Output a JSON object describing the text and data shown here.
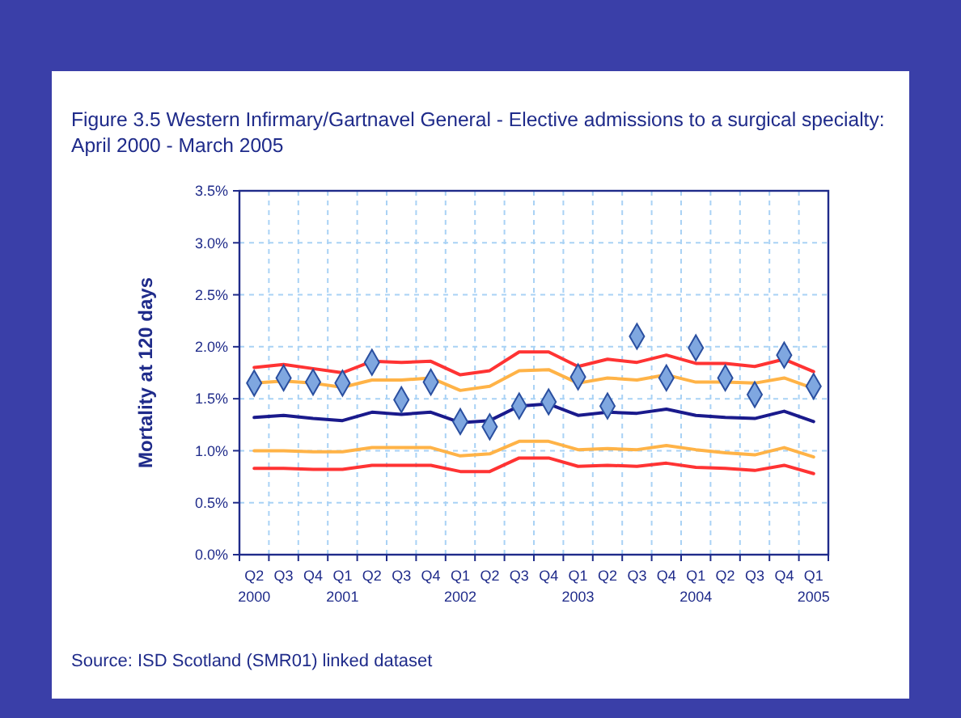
{
  "chart_data": {
    "type": "line",
    "title": "Figure 3.5 Western Infirmary/Gartnavel General - Elective admissions to a surgical specialty:\nApril 2000 - March 2005",
    "ylabel": "Mortality at 120 days",
    "categories": [
      "Q2\n2000",
      "Q3",
      "Q4",
      "Q1\n2001",
      "Q2",
      "Q3",
      "Q4",
      "Q1\n2002",
      "Q2",
      "Q3",
      "Q4",
      "Q1\n2003",
      "Q2",
      "Q3",
      "Q4",
      "Q1\n2004",
      "Q2",
      "Q3",
      "Q4",
      "Q1\n2005"
    ],
    "series": [
      {
        "type": "line",
        "color": "#ff3333",
        "marker": "none",
        "values": [
          1.8,
          1.83,
          1.79,
          1.75,
          1.86,
          1.85,
          1.86,
          1.73,
          1.77,
          1.95,
          1.95,
          1.81,
          1.88,
          1.85,
          1.92,
          1.84,
          1.84,
          1.81,
          1.88,
          1.76
        ]
      },
      {
        "type": "line",
        "color": "#ffb347",
        "marker": "none",
        "values": [
          1.65,
          1.67,
          1.65,
          1.61,
          1.68,
          1.68,
          1.7,
          1.58,
          1.62,
          1.77,
          1.78,
          1.65,
          1.7,
          1.68,
          1.73,
          1.66,
          1.66,
          1.65,
          1.7,
          1.6
        ]
      },
      {
        "type": "line",
        "color": "#1a1a8c",
        "marker": "none",
        "values": [
          1.32,
          1.34,
          1.31,
          1.29,
          1.37,
          1.35,
          1.37,
          1.27,
          1.29,
          1.43,
          1.45,
          1.34,
          1.37,
          1.36,
          1.4,
          1.34,
          1.32,
          1.31,
          1.38,
          1.28
        ]
      },
      {
        "type": "line",
        "color": "#ffb347",
        "marker": "none",
        "values": [
          1.0,
          1.0,
          0.99,
          0.99,
          1.03,
          1.03,
          1.03,
          0.95,
          0.97,
          1.09,
          1.09,
          1.01,
          1.02,
          1.01,
          1.05,
          1.01,
          0.98,
          0.96,
          1.03,
          0.94
        ]
      },
      {
        "type": "line",
        "color": "#ff3333",
        "marker": "none",
        "values": [
          0.83,
          0.83,
          0.82,
          0.82,
          0.86,
          0.86,
          0.86,
          0.8,
          0.8,
          0.93,
          0.93,
          0.85,
          0.86,
          0.85,
          0.88,
          0.84,
          0.83,
          0.81,
          0.86,
          0.78
        ]
      },
      {
        "type": "scatter",
        "color": "#7fa7e0",
        "marker": "diamond",
        "values": [
          1.65,
          1.7,
          1.66,
          1.65,
          1.85,
          1.49,
          1.66,
          1.28,
          1.23,
          1.43,
          1.47,
          1.71,
          1.43,
          2.1,
          1.7,
          1.99,
          1.7,
          1.54,
          1.92,
          1.62
        ]
      }
    ],
    "ylim": [
      0,
      3.5
    ],
    "yticks": [
      {
        "value": 0,
        "label": "0.0%"
      },
      {
        "value": 0.5,
        "label": "0.5%"
      },
      {
        "value": 1,
        "label": "1.0%"
      },
      {
        "value": 1.5,
        "label": "1.5%"
      },
      {
        "value": 2,
        "label": "2.0%"
      },
      {
        "value": 2.5,
        "label": "2.5%"
      },
      {
        "value": 3,
        "label": "3.0%"
      },
      {
        "value": 3.5,
        "label": "3.5%"
      }
    ],
    "grid": true,
    "annotations": [
      "Source: ISD Scotland (SMR01) linked dataset"
    ]
  }
}
